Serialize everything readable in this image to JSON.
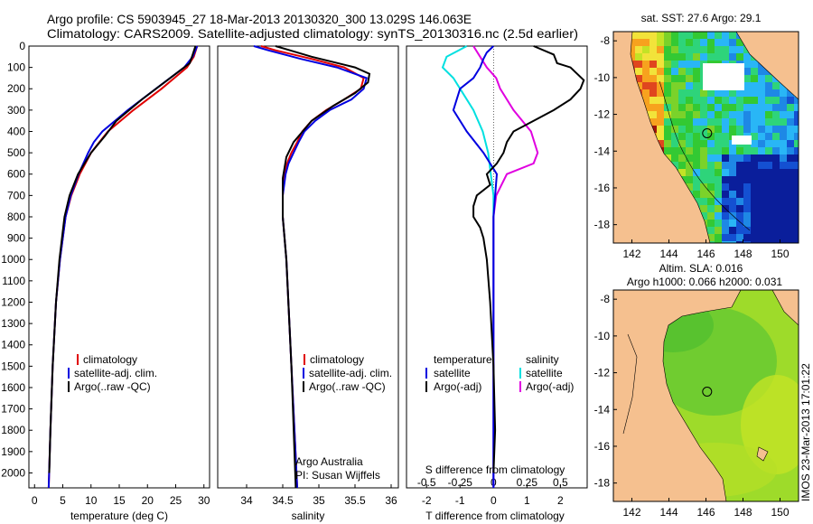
{
  "header": {
    "line1": "Argo profile: CS 5903945_27 18-Mar-2013 20130320_300 13.029S 146.063E",
    "line2": "Climatology: CARS2009. Satellite-adjusted climatology: synTS_20130316.nc (2.5d earlier)"
  },
  "side_credit": "IMOS 23-Mar-2013 17:01:22",
  "colors": {
    "climatology": "#e00000",
    "satellite": "#0000e0",
    "argo": "#000000",
    "sal_sat": "#00e0e0",
    "sal_argo": "#e000e0",
    "land": "#f5c08f"
  },
  "chart_data": [
    {
      "id": "temperature",
      "type": "line",
      "xlabel": "temperature (deg C)",
      "ylabel": "",
      "xlim": [
        -1,
        31
      ],
      "ylim": [
        2070,
        0
      ],
      "xticks": [
        "0",
        "5",
        "10",
        "15",
        "20",
        "25",
        "30"
      ],
      "yticks": [
        "0",
        "100",
        "200",
        "300",
        "400",
        "500",
        "600",
        "700",
        "800",
        "900",
        "1000",
        "1100",
        "1200",
        "1300",
        "1400",
        "1500",
        "1600",
        "1700",
        "1800",
        "1900",
        "2000"
      ],
      "legend": [
        "climatology",
        "satellite-adj. clim.",
        "Argo(..raw -QC)"
      ],
      "series": [
        {
          "name": "climatology",
          "depth": [
            0,
            50,
            100,
            200,
            300,
            400,
            450,
            500,
            600,
            700,
            800,
            1000,
            1200,
            1500,
            1800,
            2070
          ],
          "values": [
            28.8,
            28.2,
            27,
            22.5,
            17.5,
            13,
            11.5,
            10,
            8,
            6.5,
            5.5,
            4.5,
            3.8,
            3.2,
            2.8,
            2.5
          ]
        },
        {
          "name": "satellite",
          "depth": [
            0,
            50,
            100,
            200,
            300,
            400,
            450,
            500,
            600,
            700,
            800,
            1000,
            1200,
            1500,
            1800,
            2070
          ],
          "values": [
            28.8,
            28,
            26.5,
            21.5,
            16.5,
            12,
            10.5,
            9.5,
            7.8,
            6.4,
            5.5,
            4.5,
            3.8,
            3.2,
            2.8,
            2.5
          ]
        },
        {
          "name": "argo",
          "depth": [
            0,
            40,
            80,
            150,
            250,
            350,
            420,
            500,
            600,
            700,
            800,
            1000,
            1200,
            1500,
            1800,
            2000
          ],
          "values": [
            28.5,
            28,
            27.5,
            24,
            19,
            14.5,
            12.5,
            10,
            7.7,
            6.2,
            5.3,
            4.4,
            3.8,
            3.2,
            2.8,
            2.6
          ]
        }
      ]
    },
    {
      "id": "salinity",
      "type": "line",
      "xlabel": "salinity",
      "ylabel": "",
      "xlim": [
        33.6,
        36.1
      ],
      "ylim": [
        2070,
        0
      ],
      "xticks": [
        "34",
        "34.5",
        "35",
        "35.5",
        "36"
      ],
      "legend": [
        "climatology",
        "satellite-adj. clim.",
        "Argo(..raw -QC)"
      ],
      "annotation": [
        "Argo Australia",
        "PI: Susan Wijffels"
      ],
      "series": [
        {
          "name": "climatology",
          "depth": [
            0,
            20,
            60,
            100,
            150,
            200,
            250,
            300,
            350,
            400,
            450,
            500,
            550,
            600,
            700,
            800,
            1000,
            1500,
            2070
          ],
          "values": [
            34.2,
            34.4,
            34.9,
            35.35,
            35.62,
            35.58,
            35.35,
            35.1,
            34.9,
            34.77,
            34.7,
            34.62,
            34.56,
            34.53,
            34.5,
            34.5,
            34.55,
            34.62,
            34.7
          ]
        },
        {
          "name": "satellite",
          "depth": [
            0,
            20,
            60,
            100,
            150,
            200,
            250,
            300,
            350,
            400,
            450,
            500,
            550,
            600,
            700,
            800,
            1000,
            1500,
            2070
          ],
          "values": [
            34.1,
            34.3,
            34.75,
            35.25,
            35.66,
            35.62,
            35.45,
            35.15,
            34.95,
            34.8,
            34.72,
            34.65,
            34.58,
            34.54,
            34.5,
            34.5,
            34.55,
            34.62,
            34.7
          ]
        },
        {
          "name": "argo",
          "depth": [
            0,
            20,
            50,
            100,
            130,
            170,
            220,
            280,
            350,
            450,
            520,
            580,
            620,
            700,
            800,
            1000,
            1500,
            2070
          ],
          "values": [
            34.4,
            34.6,
            34.9,
            35.5,
            35.7,
            35.68,
            35.5,
            35.2,
            34.9,
            34.65,
            34.55,
            34.52,
            34.5,
            34.5,
            34.5,
            34.55,
            34.62,
            34.68
          ]
        }
      ]
    },
    {
      "id": "difference",
      "type": "line",
      "xlabel": "T difference from climatology",
      "xlabel_top": "S difference from climatology",
      "xlim": [
        -2.6,
        2.8
      ],
      "ylim": [
        2070,
        0
      ],
      "xticks": [
        "-2",
        "-1",
        "0",
        "1",
        "2"
      ],
      "xticks_S": [
        "-0.5",
        "-0.25",
        "0",
        "0.25",
        "0.5"
      ],
      "legend_temperature": {
        "title": "temperature",
        "items": [
          "satellite",
          "Argo(-adj)"
        ]
      },
      "legend_salinity": {
        "title": "salinity",
        "items": [
          "satellite",
          "Argo(-adj)"
        ]
      },
      "series": [
        {
          "name": "T satellite",
          "depth": [
            0,
            30,
            60,
            100,
            150,
            200,
            300,
            400,
            500,
            600,
            700,
            800,
            1000,
            1200,
            1500,
            1800,
            2070
          ],
          "values": [
            0,
            -0.2,
            -0.3,
            -0.4,
            -0.6,
            -1,
            -1.2,
            -0.8,
            -0.3,
            0.1,
            0.05,
            0,
            0,
            0,
            0,
            0,
            0
          ]
        },
        {
          "name": "T Argo(-adj)",
          "depth": [
            0,
            40,
            80,
            100,
            130,
            160,
            200,
            250,
            300,
            350,
            400,
            450,
            500,
            550,
            600,
            650,
            700,
            750,
            800,
            850,
            900,
            1000,
            1200,
            1500,
            1800,
            2000
          ],
          "values": [
            1.2,
            1.8,
            1.9,
            2.3,
            2.5,
            2.7,
            2.6,
            2.3,
            1.8,
            1.2,
            0.6,
            0.4,
            0.3,
            0.1,
            -0.2,
            -0.1,
            -0.5,
            -0.6,
            -0.6,
            -0.4,
            -0.3,
            -0.2,
            -0.1,
            0,
            0.05,
            0
          ]
        },
        {
          "name": "S satellite",
          "depth": [
            0,
            50,
            100,
            150,
            200,
            300,
            400,
            500,
            600,
            700,
            800,
            1000,
            1500,
            2070
          ],
          "values": [
            -0.2,
            -0.35,
            -0.38,
            -0.3,
            -0.25,
            -0.15,
            -0.08,
            -0.04,
            -0.02,
            0,
            0,
            0,
            0,
            0
          ]
        },
        {
          "name": "S Argo(-adj)",
          "depth": [
            0,
            50,
            100,
            150,
            200,
            300,
            400,
            500,
            550,
            600,
            700,
            800,
            1000,
            1500,
            2070
          ],
          "values": [
            -0.15,
            -0.1,
            -0.05,
            0.02,
            0.05,
            0.15,
            0.28,
            0.33,
            0.3,
            0.1,
            0.02,
            0,
            0,
            0,
            0
          ]
        }
      ]
    },
    {
      "id": "sst_map",
      "type": "heatmap",
      "title": "sat. SST: 27.6  Argo: 29.1",
      "xlim": [
        141,
        151
      ],
      "ylim": [
        -19,
        -7.5
      ],
      "xticks": [
        "142",
        "144",
        "146",
        "148",
        "150"
      ],
      "yticks": [
        "-8",
        "-10",
        "-12",
        "-14",
        "-16",
        "-18"
      ],
      "argo_location": [
        146.063,
        -13.029
      ]
    },
    {
      "id": "sla_map",
      "type": "heatmap",
      "title": "Altim. SLA: 0.016",
      "subtitle": "Argo h1000: 0.066  h2000: 0.031",
      "xlim": [
        141,
        151
      ],
      "ylim": [
        -19,
        -7.5
      ],
      "xticks": [
        "142",
        "144",
        "146",
        "148",
        "150"
      ],
      "yticks": [
        "-8",
        "-10",
        "-12",
        "-14",
        "-16",
        "-18"
      ],
      "argo_location": [
        146.063,
        -13.029
      ]
    }
  ]
}
